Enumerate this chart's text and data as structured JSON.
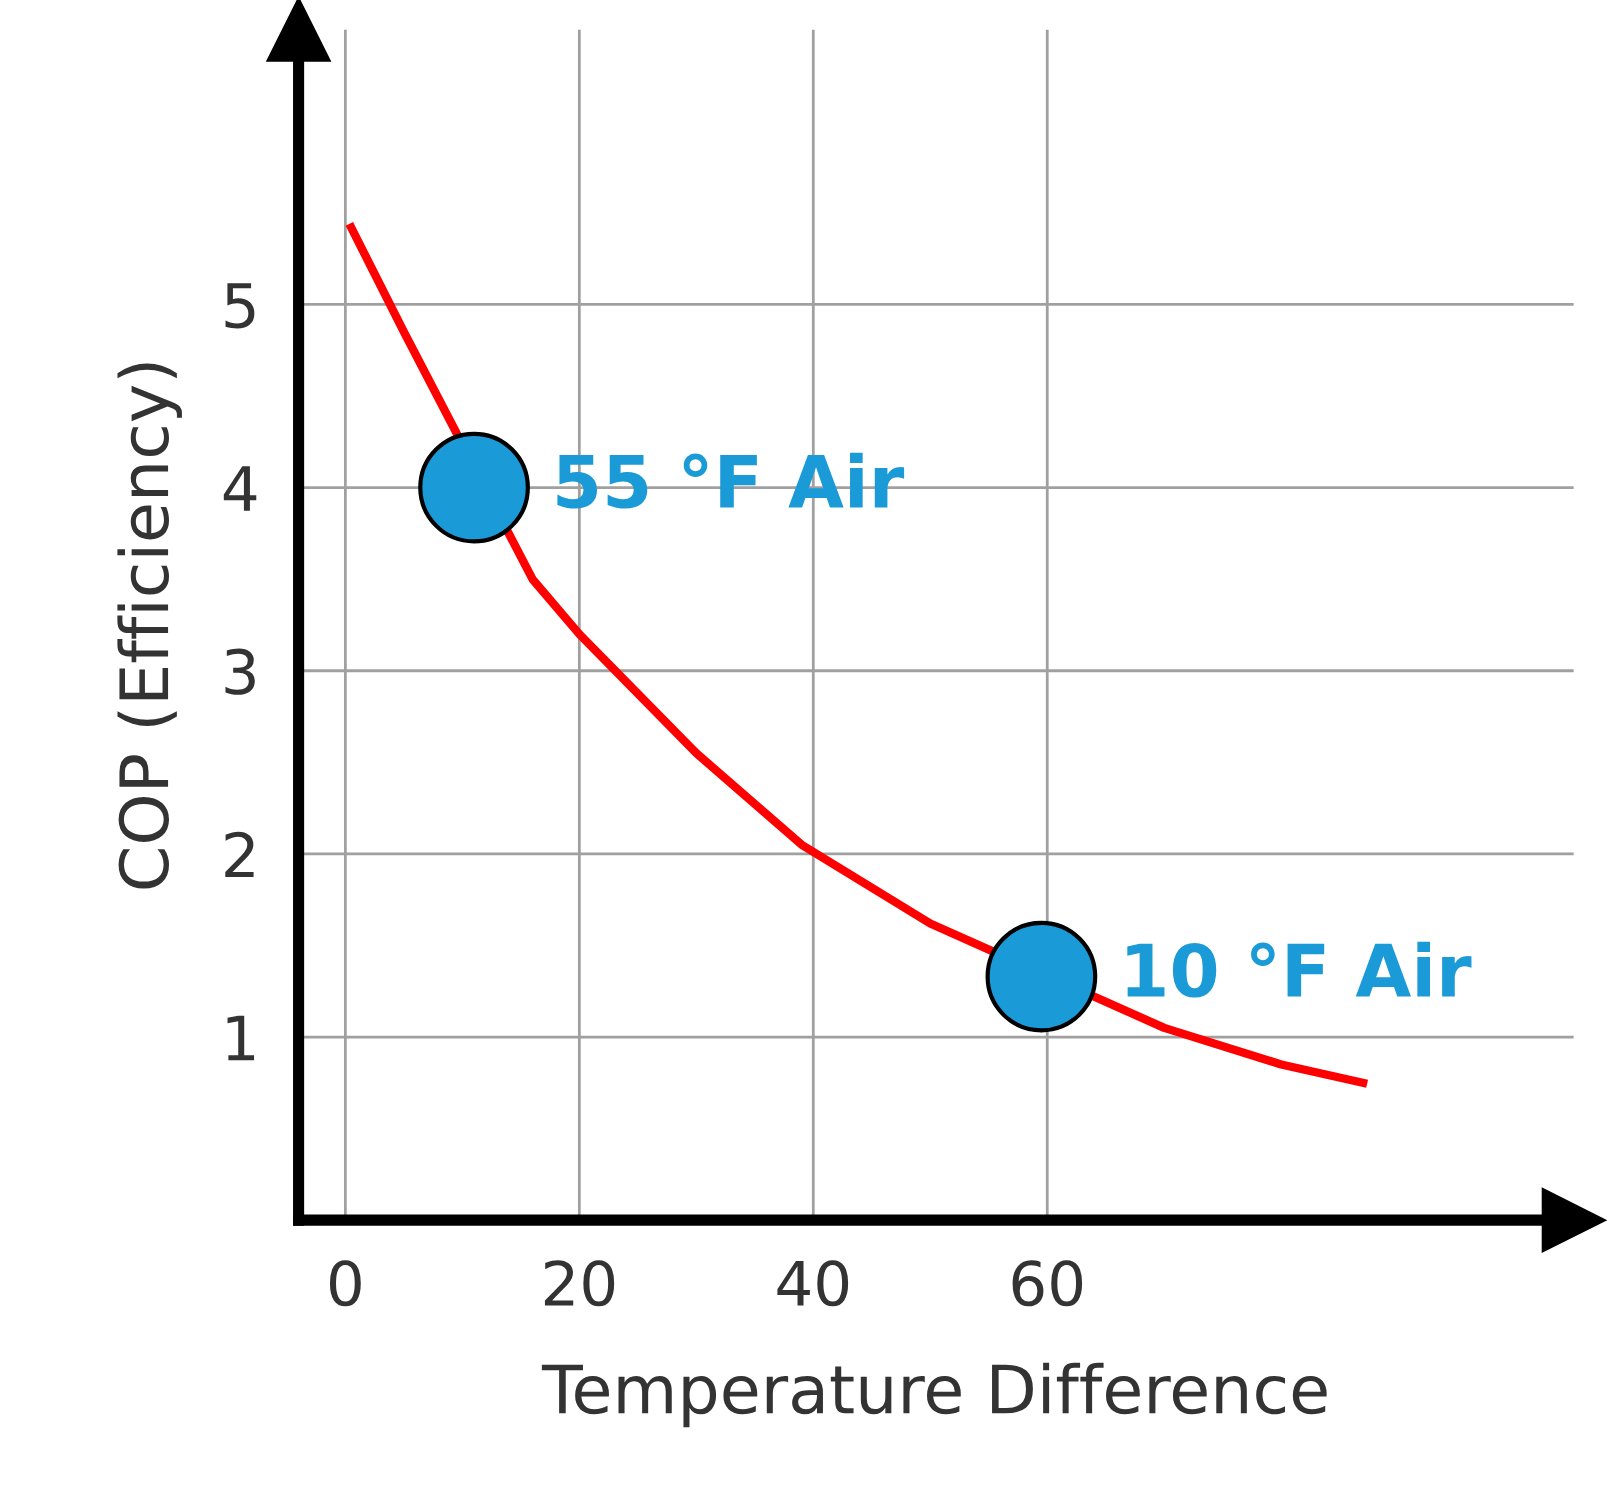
{
  "chart_data": {
    "type": "line",
    "xlabel": "Temperature Difference",
    "ylabel": "COP (Efficiency)",
    "xlim": [
      -4,
      105
    ],
    "ylim": [
      0,
      6.5
    ],
    "xticks": [
      0,
      20,
      40,
      60
    ],
    "yticks": [
      1,
      2,
      3,
      4,
      5
    ],
    "grid": true,
    "legend": false,
    "series": [
      {
        "color": "#ff0000",
        "marker": "none",
        "x": [
          0.5,
          5,
          16,
          20,
          30,
          39,
          50,
          70,
          80,
          87
        ],
        "values": [
          5.42,
          4.85,
          3.5,
          3.2,
          2.55,
          2.05,
          1.62,
          1.05,
          0.85,
          0.75
        ]
      },
      {
        "type": "scatter",
        "color": "#1a9ad6",
        "marker": "circle",
        "x": [
          11,
          59.5
        ],
        "values": [
          4.0,
          1.33
        ]
      }
    ],
    "annotations": [
      {
        "text": "55 °F Air",
        "x": 11,
        "y": 4.0
      },
      {
        "text": "10 °F Air",
        "x": 59.5,
        "y": 1.33
      }
    ]
  }
}
